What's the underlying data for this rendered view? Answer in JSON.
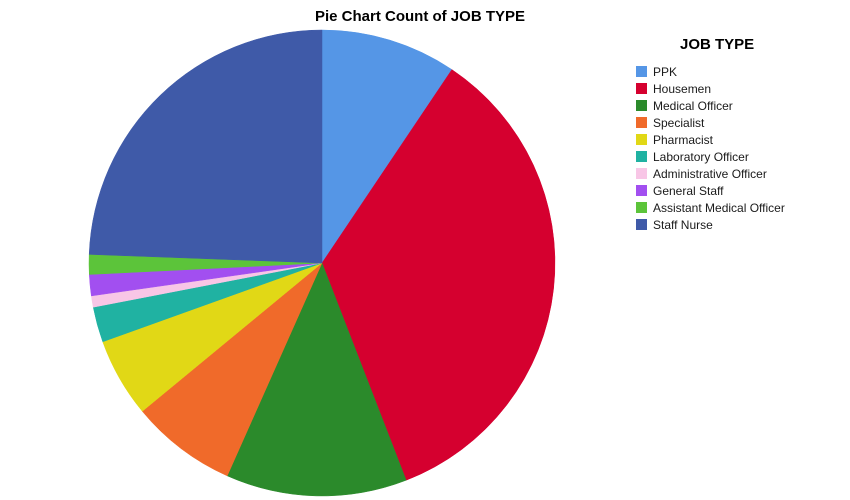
{
  "chart_data": {
    "type": "pie",
    "title": "Pie Chart Count of JOB TYPE",
    "legend_title": "JOB TYPE",
    "legend_position": "right",
    "start_angle_deg": 0,
    "direction": "clockwise",
    "slices": [
      {
        "label": "PPK",
        "value": 9.6,
        "color": "#5596e6"
      },
      {
        "label": "Housemen",
        "value": 35.4,
        "color": "#d5002f"
      },
      {
        "label": "Medical Officer",
        "value": 12.8,
        "color": "#2b8a2b"
      },
      {
        "label": "Specialist",
        "value": 7.5,
        "color": "#f06a2a"
      },
      {
        "label": "Pharmacist",
        "value": 5.6,
        "color": "#e1d816"
      },
      {
        "label": "Laboratory Officer",
        "value": 2.5,
        "color": "#20b2a2"
      },
      {
        "label": "Administrative Officer",
        "value": 0.8,
        "color": "#f8c6e6"
      },
      {
        "label": "General Staff",
        "value": 1.5,
        "color": "#a24ff0"
      },
      {
        "label": "Assistant Medical Officer",
        "value": 1.4,
        "color": "#5cc43a"
      },
      {
        "label": "Staff Nurse",
        "value": 24.9,
        "color": "#3f5aa8"
      }
    ]
  }
}
